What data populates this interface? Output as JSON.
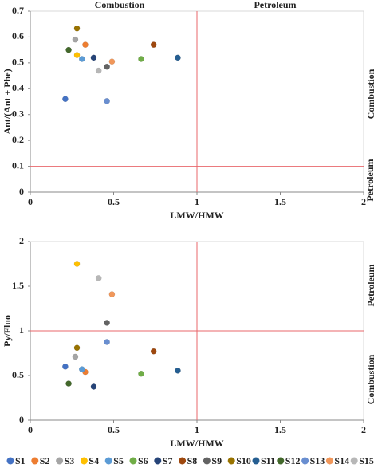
{
  "chart_data": [
    {
      "type": "scatter",
      "xlabel": "LMW/HMW",
      "ylabel": "Ant/(Ant + Phe)",
      "xlim": [
        0,
        2
      ],
      "xticks": [
        0,
        0.5,
        1,
        1.5,
        2
      ],
      "ylim": [
        0,
        0.7
      ],
      "yticks": [
        0,
        0.1,
        0.2,
        0.3,
        0.4,
        0.5,
        0.6,
        0.7
      ],
      "reference_lines": {
        "x": 1,
        "y": 0.1,
        "color": "#e8676b"
      },
      "annotations": [
        "Combustion",
        "Petroleum",
        "Combustion",
        "Petroleum"
      ],
      "series": [
        {
          "name": "S1",
          "color": "#4472c4",
          "x": [
            0.21
          ],
          "values": [
            0.36
          ]
        },
        {
          "name": "S2",
          "color": "#ed7d31",
          "x": [
            0.33
          ],
          "values": [
            0.57
          ]
        },
        {
          "name": "S3",
          "color": "#a5a5a5",
          "x": [
            0.27
          ],
          "values": [
            0.59
          ]
        },
        {
          "name": "S4",
          "color": "#ffc000",
          "x": [
            0.28
          ],
          "values": [
            0.53
          ]
        },
        {
          "name": "S5",
          "color": "#5b9bd5",
          "x": [
            0.31
          ],
          "values": [
            0.515
          ]
        },
        {
          "name": "S6",
          "color": "#70ad47",
          "x": [
            0.665
          ],
          "values": [
            0.515
          ]
        },
        {
          "name": "S7",
          "color": "#264478",
          "x": [
            0.38
          ],
          "values": [
            0.52
          ]
        },
        {
          "name": "S8",
          "color": "#9e480e",
          "x": [
            0.74
          ],
          "values": [
            0.57
          ]
        },
        {
          "name": "S9",
          "color": "#636363",
          "x": [
            0.46
          ],
          "values": [
            0.485
          ]
        },
        {
          "name": "S10",
          "color": "#997300",
          "x": [
            0.28
          ],
          "values": [
            0.633
          ]
        },
        {
          "name": "S11",
          "color": "#255e91",
          "x": [
            0.885
          ],
          "values": [
            0.52
          ]
        },
        {
          "name": "S12",
          "color": "#43682b",
          "x": [
            0.23
          ],
          "values": [
            0.55
          ]
        },
        {
          "name": "S13",
          "color": "#698ed0",
          "x": [
            0.46
          ],
          "values": [
            0.352
          ]
        },
        {
          "name": "S14",
          "color": "#f1975a",
          "x": [
            0.49
          ],
          "values": [
            0.505
          ]
        },
        {
          "name": "S15",
          "color": "#b7b7b7",
          "x": [
            0.41
          ],
          "values": [
            0.47
          ]
        }
      ]
    },
    {
      "type": "scatter",
      "xlabel": "LMW/HMW",
      "ylabel": "Py/Fluo",
      "xlim": [
        0,
        2
      ],
      "xticks": [
        0,
        0.5,
        1,
        1.5,
        2
      ],
      "ylim": [
        0,
        2
      ],
      "yticks": [
        0,
        0.5,
        1,
        1.5,
        2
      ],
      "reference_lines": {
        "x": 1,
        "y": 1,
        "color": "#e8676b"
      },
      "annotations": [
        "Petroleum",
        "Combustion"
      ],
      "series": [
        {
          "color": "#4472c4",
          "x": [
            0.21
          ],
          "values": [
            0.6
          ]
        },
        {
          "color": "#ed7d31",
          "x": [
            0.33
          ],
          "values": [
            0.54
          ]
        },
        {
          "color": "#a5a5a5",
          "x": [
            0.27
          ],
          "values": [
            0.71
          ]
        },
        {
          "color": "#ffc000",
          "x": [
            0.28
          ],
          "values": [
            1.75
          ]
        },
        {
          "color": "#5b9bd5",
          "x": [
            0.31
          ],
          "values": [
            0.57
          ]
        },
        {
          "color": "#70ad47",
          "x": [
            0.665
          ],
          "values": [
            0.52
          ]
        },
        {
          "color": "#264478",
          "x": [
            0.38
          ],
          "values": [
            0.375
          ]
        },
        {
          "color": "#9e480e",
          "x": [
            0.74
          ],
          "values": [
            0.77
          ]
        },
        {
          "color": "#636363",
          "x": [
            0.46
          ],
          "values": [
            1.09
          ]
        },
        {
          "color": "#997300",
          "x": [
            0.28
          ],
          "values": [
            0.81
          ]
        },
        {
          "color": "#255e91",
          "x": [
            0.885
          ],
          "values": [
            0.555
          ]
        },
        {
          "color": "#43682b",
          "x": [
            0.23
          ],
          "values": [
            0.41
          ]
        },
        {
          "color": "#698ed0",
          "x": [
            0.46
          ],
          "values": [
            0.875
          ]
        },
        {
          "color": "#f1975a",
          "x": [
            0.49
          ],
          "values": [
            1.41
          ]
        },
        {
          "color": "#b7b7b7",
          "x": [
            0.41
          ],
          "values": [
            1.59
          ]
        }
      ]
    }
  ]
}
